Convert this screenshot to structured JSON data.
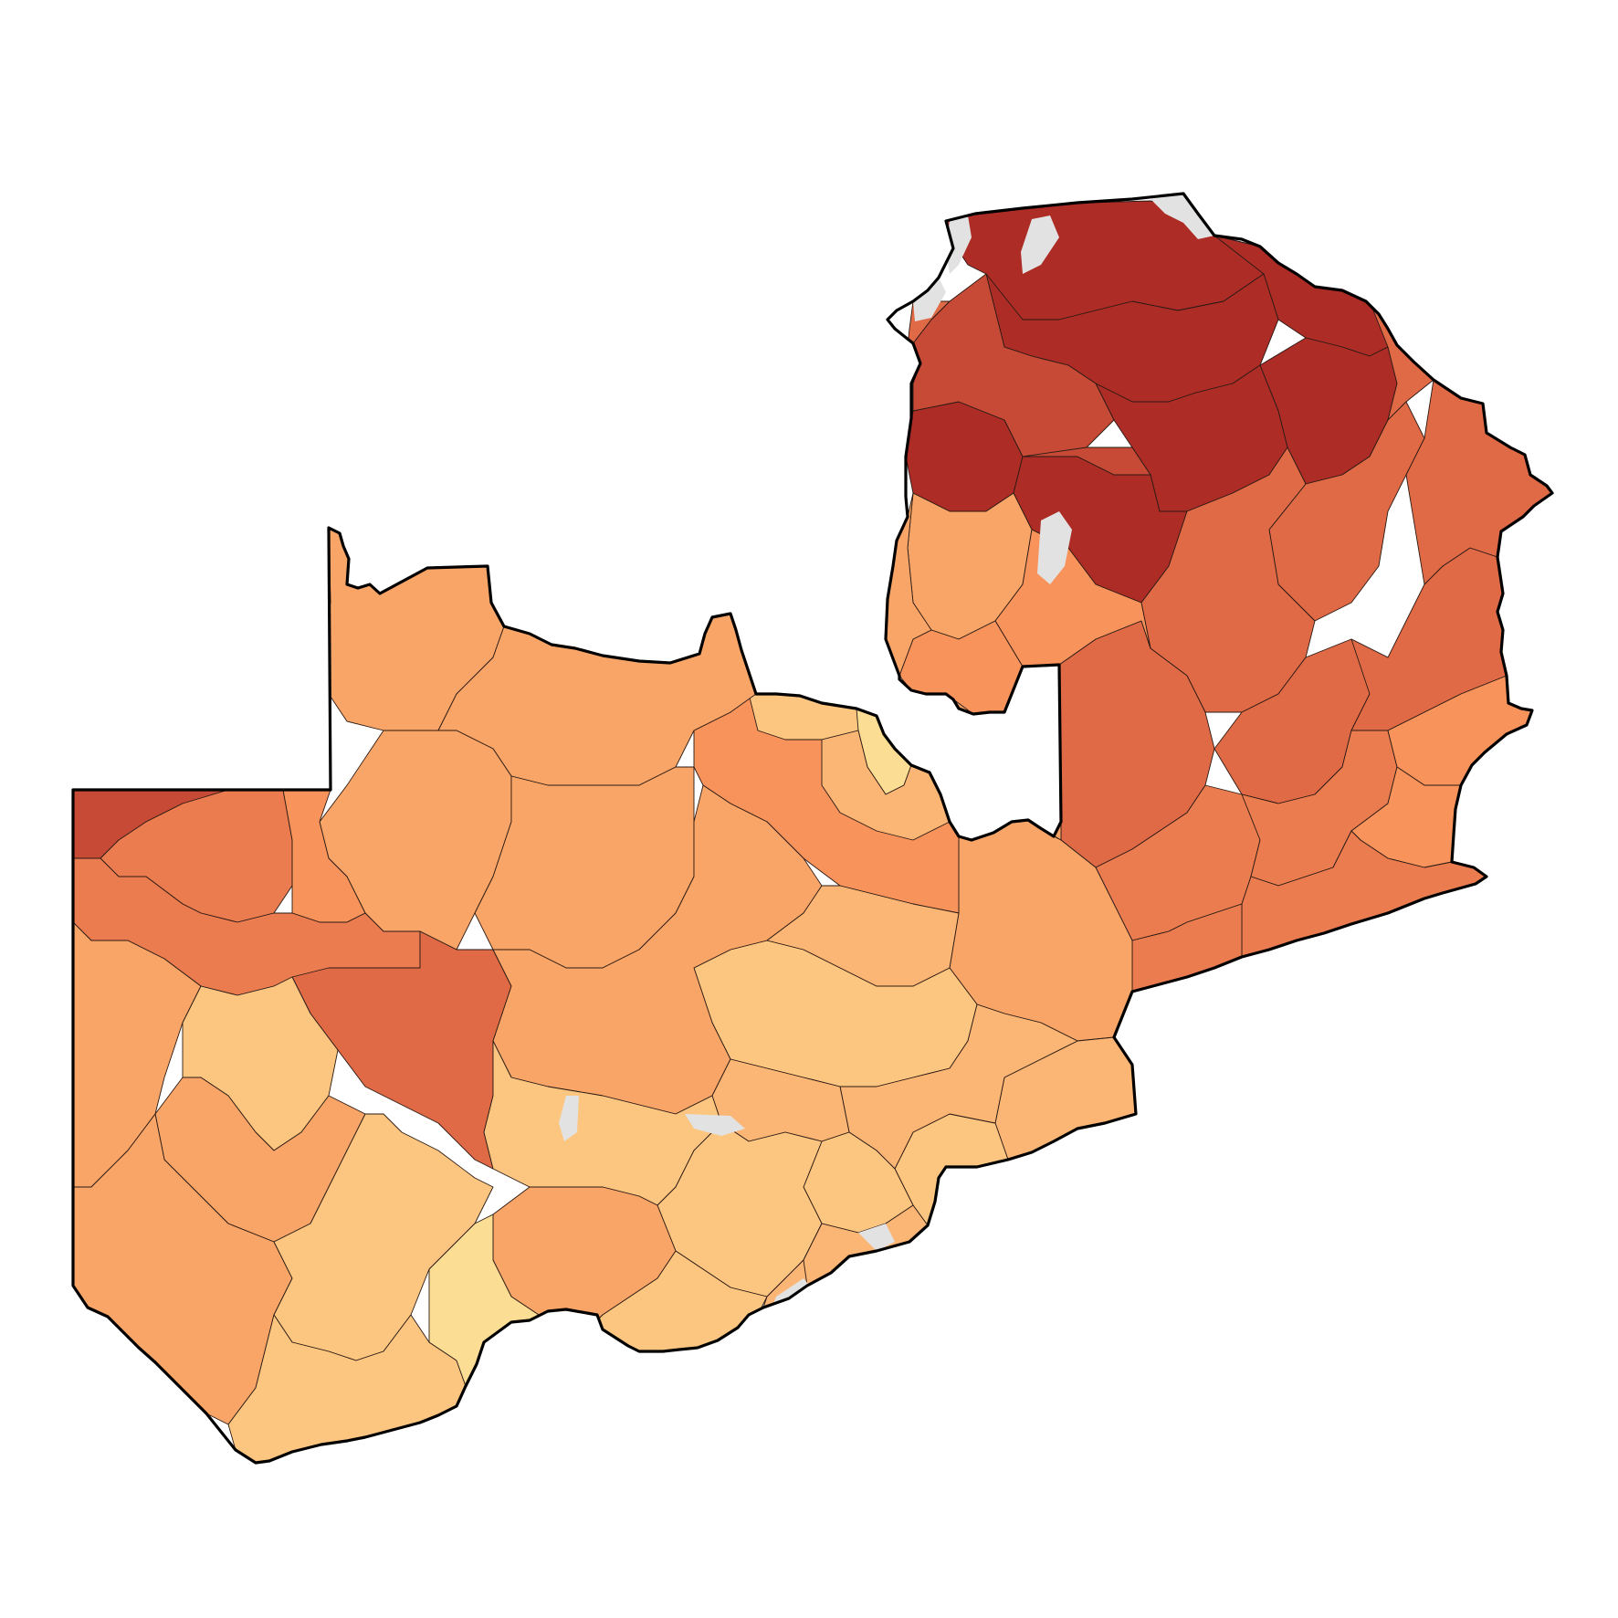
{
  "map": {
    "kind": "choropleth",
    "title": "",
    "legend": null,
    "palette": {
      "class1": "#fbdd93",
      "class2": "#fcc681",
      "class3": "#fbb574",
      "class4": "#f9a567",
      "class5": "#f7935b",
      "class6": "#ea7c4f",
      "class7": "#e06a46",
      "class8": "#c64a35",
      "class9": "#ad2c26",
      "nodata": "#e2e2e2",
      "water": "#e6eef0",
      "boundary": "#000000"
    }
  }
}
